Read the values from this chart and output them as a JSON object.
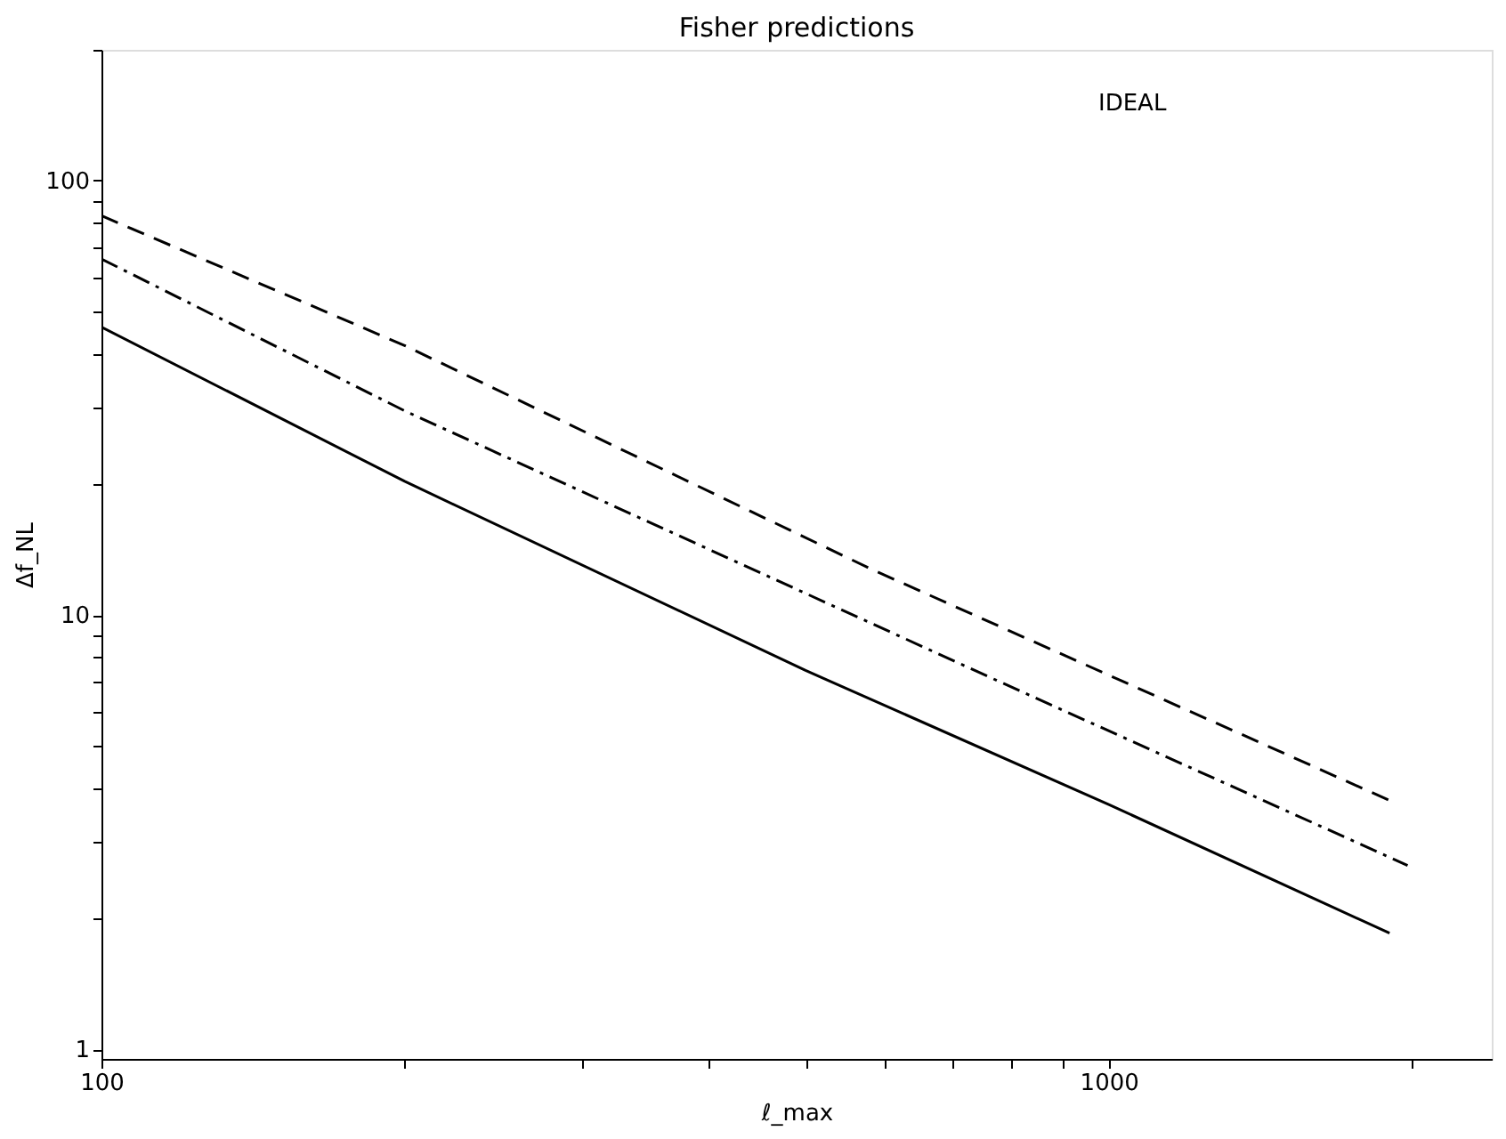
{
  "chart_data": {
    "type": "line",
    "title": "Fisher predictions",
    "xlabel": "ℓ_max",
    "ylabel": "Δf_NL",
    "log": "xy",
    "grid": false,
    "marker": "none",
    "xlim": [
      100,
      2400
    ],
    "ylim": [
      0.95,
      200
    ],
    "xticks": [
      100,
      {
        "value": 200,
        "label": null
      },
      {
        "value": 300,
        "label": null
      },
      {
        "value": 400,
        "label": null
      },
      {
        "value": 500,
        "label": null
      },
      {
        "value": 600,
        "label": null
      },
      {
        "value": 700,
        "label": null
      },
      {
        "value": 800,
        "label": null
      },
      {
        "value": 900,
        "label": null
      },
      1000,
      {
        "value": 2000,
        "label": null
      }
    ],
    "yticks": [
      1,
      {
        "value": 2,
        "label": null
      },
      {
        "value": 3,
        "label": null
      },
      {
        "value": 4,
        "label": null
      },
      {
        "value": 5,
        "label": null
      },
      {
        "value": 6,
        "label": null
      },
      {
        "value": 7,
        "label": null
      },
      {
        "value": 8,
        "label": null
      },
      {
        "value": 9,
        "label": null
      },
      10,
      {
        "value": 20,
        "label": null
      },
      {
        "value": 30,
        "label": null
      },
      {
        "value": 40,
        "label": null
      },
      {
        "value": 50,
        "label": null
      },
      {
        "value": 60,
        "label": null
      },
      {
        "value": 70,
        "label": null
      },
      {
        "value": 80,
        "label": null
      },
      {
        "value": 90,
        "label": null
      },
      100,
      {
        "value": 200,
        "label": null
      }
    ],
    "series": [
      {
        "color": "#000000",
        "line_style": "dashed",
        "x": [
          100,
          200,
          583,
          1920
        ],
        "values": [
          83,
          41.7,
          12.7,
          3.7
        ]
      },
      {
        "color": "#000000",
        "line_style": "dashdot",
        "x": [
          100,
          200,
          781,
          1980
        ],
        "values": [
          66,
          29.5,
          7.0,
          2.65
        ]
      },
      {
        "color": "#000000",
        "line_style": "solid",
        "x": [
          100,
          200,
          500,
          1000,
          1900
        ],
        "values": [
          46,
          20.3,
          7.45,
          3.66,
          1.85
        ]
      }
    ],
    "annotations": [
      "IDEAL"
    ]
  }
}
